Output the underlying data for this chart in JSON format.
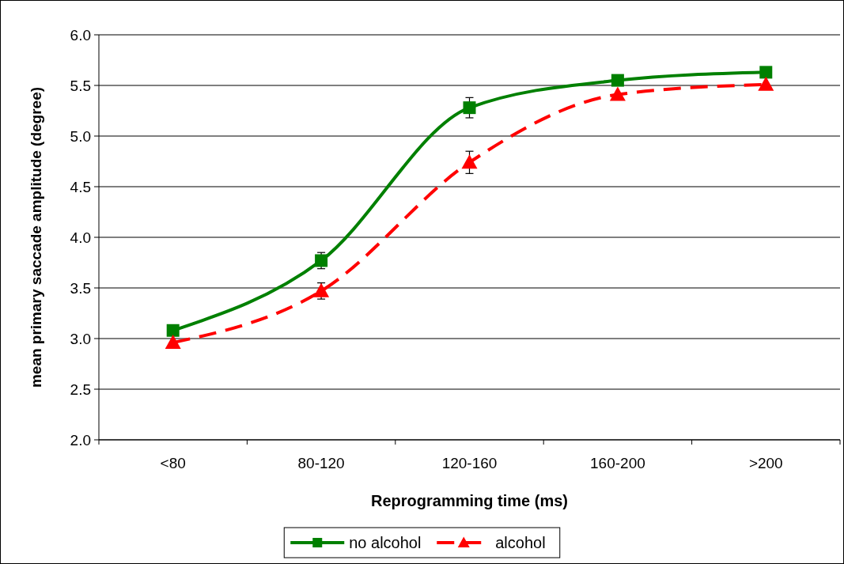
{
  "chart_data": {
    "type": "line",
    "xlabel": "Reprogramming time (ms)",
    "ylabel": "mean primary saccade amplitude (degree)",
    "categories": [
      "<80",
      "80-120",
      "120-160",
      "160-200",
      ">200"
    ],
    "series": [
      {
        "name": "no alcohol",
        "color": "#008000",
        "values": [
          3.08,
          3.77,
          5.28,
          5.55,
          5.63
        ],
        "errors": [
          null,
          0.08,
          0.1,
          null,
          null
        ],
        "marker": "square",
        "line_style": "solid"
      },
      {
        "name": "alcohol",
        "color": "#ff0000",
        "values": [
          2.96,
          3.47,
          4.74,
          5.41,
          5.51
        ],
        "errors": [
          null,
          0.08,
          0.11,
          null,
          null
        ],
        "marker": "triangle",
        "line_style": "dashed"
      }
    ],
    "ylim": [
      2,
      6
    ],
    "yticks": [
      {
        "value": 2,
        "label": "2.0"
      },
      {
        "value": 2.5,
        "label": "2.5"
      },
      {
        "value": 3,
        "label": "3.0"
      },
      {
        "value": 3.5,
        "label": "3.5"
      },
      {
        "value": 4,
        "label": "4.0"
      },
      {
        "value": 4.5,
        "label": "4.5"
      },
      {
        "value": 5,
        "label": "5.0"
      },
      {
        "value": 5.5,
        "label": "5.5"
      },
      {
        "value": 6,
        "label": "6.0"
      }
    ],
    "grid": "y",
    "legend": "bottom"
  }
}
